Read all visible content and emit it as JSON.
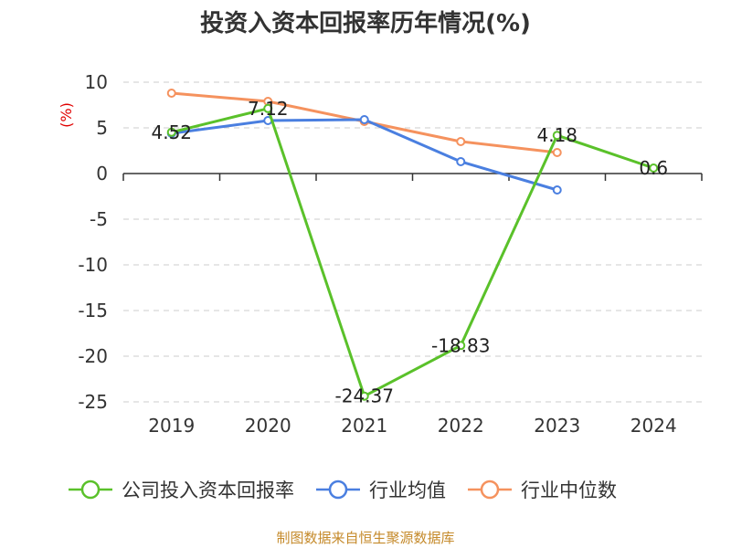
{
  "chart_data": {
    "type": "line",
    "title": "投资入资本回报率历年情况(%)",
    "ylabel": "(%)",
    "xlabel": "",
    "categories": [
      "2019",
      "2020",
      "2021",
      "2022",
      "2023",
      "2024"
    ],
    "ylim": [
      -25,
      10
    ],
    "yticks": [
      10,
      5,
      0,
      -5,
      -10,
      -15,
      -20,
      -25
    ],
    "grid": true,
    "legend_position": "bottom",
    "series": [
      {
        "name": "公司投入资本回报率",
        "color": "#5ac12a",
        "values": [
          4.52,
          7.12,
          -24.37,
          -18.83,
          4.18,
          0.6
        ],
        "labels": [
          "4.52",
          "7.12",
          "-24.37",
          "-18.83",
          "4.18",
          "0.6"
        ]
      },
      {
        "name": "行业均值",
        "color": "#4a7fe0",
        "values": [
          4.4,
          5.8,
          5.9,
          1.3,
          -1.8,
          null
        ]
      },
      {
        "name": "行业中位数",
        "color": "#f5925e",
        "values": [
          8.8,
          7.9,
          5.7,
          3.5,
          2.3,
          null
        ]
      }
    ]
  },
  "source_text": "制图数据来自恒生聚源数据库"
}
